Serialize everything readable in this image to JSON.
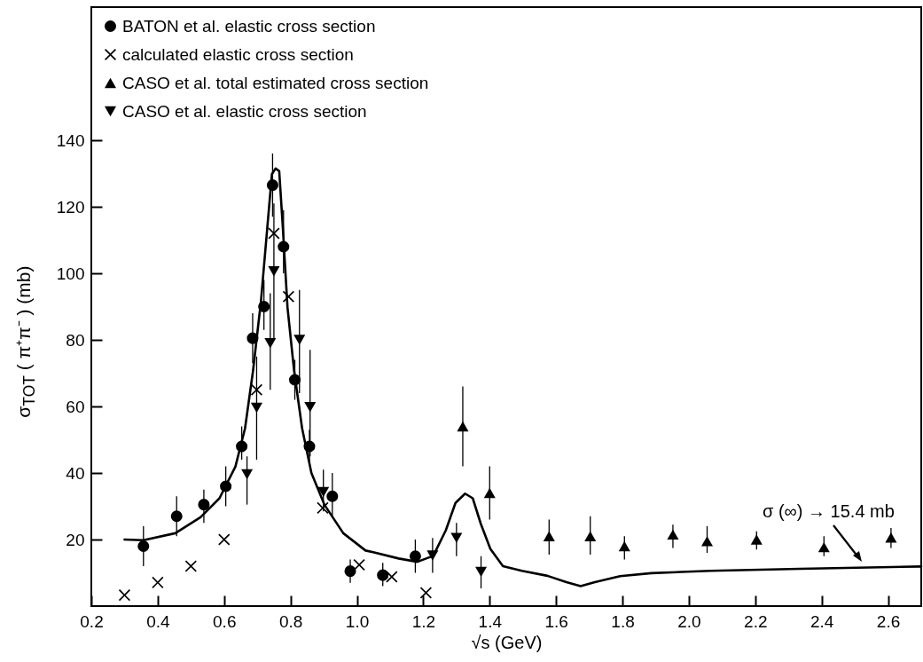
{
  "chart_data": {
    "type": "scatter",
    "xlabel": "√s  (GeV)",
    "ylabel": "σ$_{TOT}$ ( π⁺π⁻ )   (mb)",
    "xlim": [
      0.2,
      2.7
    ],
    "ylim": [
      0,
      180
    ],
    "xticks": [
      0.2,
      0.4,
      0.6,
      0.8,
      {
        "value": 1,
        "label": "1.0"
      },
      1.2,
      1.4,
      1.6,
      1.8,
      {
        "value": 2,
        "label": "2.0"
      },
      2.2,
      2.4,
      2.6
    ],
    "yticks": [
      20,
      40,
      60,
      80,
      100,
      120,
      140
    ],
    "legend": "top left",
    "annotations": [
      "σ (∞) → 15.4 mb"
    ],
    "series": [
      {
        "name": "BATON et al. elastic cross section",
        "marker": "circle",
        "color": "#000000",
        "x": [
          0.357,
          0.457,
          0.539,
          0.605,
          0.653,
          0.686,
          0.72,
          0.746,
          0.779,
          0.813,
          0.857,
          0.926,
          0.98,
          1.078,
          1.176
        ],
        "values": [
          18,
          27,
          30.5,
          36,
          48,
          80.5,
          90,
          126.5,
          108,
          68,
          48,
          33,
          10.5,
          9.3,
          15
        ],
        "errors": [
          [
            12,
            24
          ],
          [
            21,
            33
          ],
          [
            25,
            35
          ],
          [
            30,
            42
          ],
          [
            44,
            54
          ],
          [
            73,
            88
          ],
          [
            83,
            98
          ],
          [
            117,
            136
          ],
          [
            100,
            119
          ],
          [
            62,
            74
          ],
          [
            43,
            53
          ],
          [
            27,
            40
          ],
          [
            7,
            14
          ],
          [
            6,
            13
          ],
          [
            10,
            20
          ]
        ]
      },
      {
        "name": "calculated elastic cross section",
        "marker": "cross",
        "color": "#000000",
        "x": [
          0.3,
          0.4,
          0.5,
          0.6,
          0.698,
          0.75,
          0.794,
          0.897,
          1.007,
          1.105,
          1.208
        ],
        "values": [
          3.3,
          7.1,
          12,
          20,
          65,
          112,
          93,
          29.5,
          12.4,
          8.8,
          4
        ]
      },
      {
        "name": "CASO et al. total estimated cross section",
        "marker": "triangle",
        "color": "#000000",
        "x": [
          1.319,
          1.4,
          1.579,
          1.703,
          1.806,
          1.952,
          2.055,
          2.204,
          2.407,
          2.609
        ],
        "values": [
          54,
          34,
          21,
          21,
          18,
          21.5,
          19.5,
          20,
          17.7,
          20.6
        ],
        "errors": [
          [
            42,
            66
          ],
          [
            26,
            42
          ],
          [
            15.5,
            26
          ],
          [
            15.5,
            27
          ],
          [
            14,
            21
          ],
          [
            17.5,
            24.5
          ],
          [
            16,
            24
          ],
          [
            17,
            22.5
          ],
          [
            15,
            21
          ],
          [
            17.5,
            23.5
          ]
        ]
      },
      {
        "name": "CASO et al. elastic cross section",
        "marker": "triangle-down",
        "color": "#000000",
        "x": [
          0.669,
          0.698,
          0.739,
          0.75,
          0.827,
          0.859,
          0.899,
          1.228,
          1.3,
          1.374
        ],
        "values": [
          39.6,
          59.6,
          79,
          100.6,
          80,
          59.8,
          34.3,
          15.2,
          20.5,
          10.3
        ],
        "errors": [
          [
            30.5,
            45
          ],
          [
            44,
            75
          ],
          [
            65,
            94
          ],
          [
            80,
            121
          ],
          [
            64,
            95
          ],
          [
            45,
            77
          ],
          [
            28.5,
            41
          ],
          [
            10,
            20.5
          ],
          [
            15,
            25
          ],
          [
            5.3,
            15
          ]
        ]
      },
      {
        "type": "line",
        "color": "#000000",
        "marker": "none",
        "line_style": "solid",
        "x": [
          0.3,
          0.357,
          0.453,
          0.529,
          0.586,
          0.634,
          0.663,
          0.687,
          0.711,
          0.73,
          0.744,
          0.755,
          0.766,
          0.777,
          0.791,
          0.811,
          0.835,
          0.863,
          0.902,
          0.959,
          1.026,
          1.049,
          1.126,
          1.182,
          1.23,
          1.268,
          1.297,
          1.326,
          1.349,
          1.373,
          1.402,
          1.44,
          1.497,
          1.574,
          1.631,
          1.674,
          1.717,
          1.793,
          1.887,
          2.065,
          2.333,
          2.7
        ],
        "values": [
          20,
          19.8,
          21.9,
          26.7,
          32.4,
          41.9,
          53.4,
          70.6,
          91.6,
          113.6,
          129.8,
          131.5,
          130.7,
          113.6,
          89.7,
          70.6,
          53.4,
          40,
          30.5,
          21.9,
          16.7,
          16.2,
          14.3,
          13.3,
          15.1,
          22.8,
          31,
          33.8,
          32.4,
          24.8,
          17.2,
          12,
          10.6,
          9.1,
          7.2,
          6,
          7.2,
          9,
          9.9,
          10.6,
          11.2,
          11.9
        ]
      }
    ]
  }
}
